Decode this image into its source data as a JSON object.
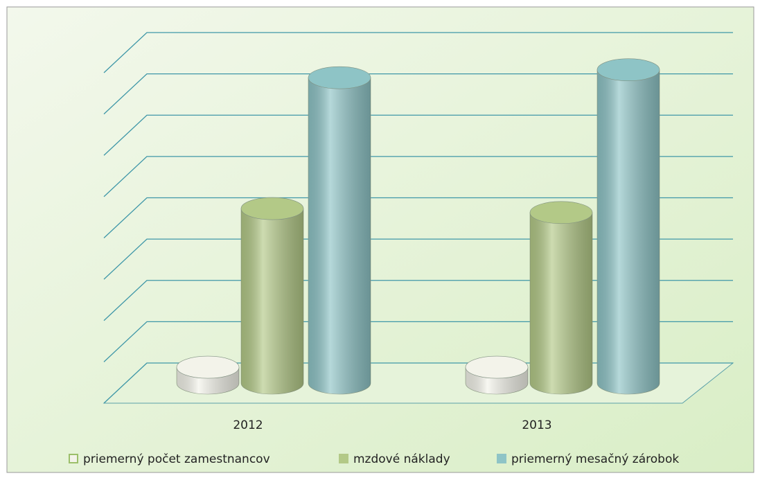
{
  "chart_data": {
    "type": "bar3d",
    "categories": [
      "2012",
      "2013"
    ],
    "series": [
      {
        "name": "priemerný počet zamestnancov",
        "color": "#f3f3ea",
        "values": [
          0.4,
          0.4
        ]
      },
      {
        "name": "mzdové náklady",
        "color": "#b3c987",
        "values": [
          4.4,
          4.3
        ]
      },
      {
        "name": "priemerný mesačný zárobok",
        "color": "#8ec4c6",
        "values": [
          7.7,
          7.9
        ]
      }
    ],
    "ylim": [
      0,
      8
    ],
    "yticks": [
      0,
      1,
      2,
      3,
      4,
      5,
      6,
      7,
      8
    ],
    "grid": true,
    "legend": "bottom"
  }
}
